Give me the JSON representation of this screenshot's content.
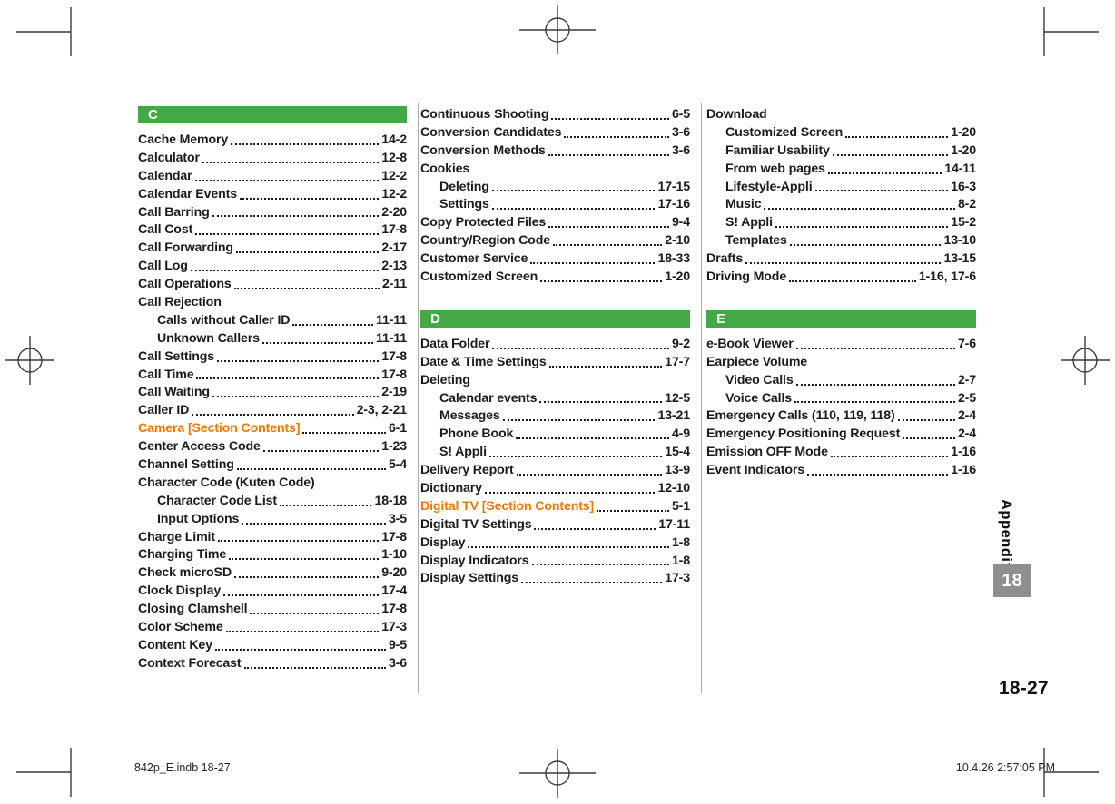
{
  "page": {
    "page_number": "18-27",
    "chapter_tab": "18",
    "sidebar_label": "Appendix",
    "footer_left": "842p_E.indb   18-27",
    "footer_right": "10.4.26   2:57:05 PM"
  },
  "colors": {
    "section_bar_green": "#44a944",
    "accent_orange": "#ee7800",
    "text": "#1b1b1b",
    "chapter_tab_gray": "#8f8f8f"
  },
  "index": {
    "columns": [
      {
        "blocks": [
          {
            "type": "header",
            "letter": "C"
          },
          {
            "type": "entry",
            "label": "Cache Memory",
            "page": "14-2"
          },
          {
            "type": "entry",
            "label": "Calculator",
            "page": "12-8"
          },
          {
            "type": "entry",
            "label": "Calendar",
            "page": "12-2"
          },
          {
            "type": "entry",
            "label": "Calendar Events",
            "page": "12-2"
          },
          {
            "type": "entry",
            "label": "Call Barring",
            "page": "2-20"
          },
          {
            "type": "entry",
            "label": "Call Cost",
            "page": "17-8"
          },
          {
            "type": "entry",
            "label": "Call Forwarding",
            "page": "2-17"
          },
          {
            "type": "entry",
            "label": "Call Log",
            "page": "2-13"
          },
          {
            "type": "entry",
            "label": "Call Operations",
            "page": "2-11"
          },
          {
            "type": "entry",
            "label": "Call Rejection",
            "page": ""
          },
          {
            "type": "entry",
            "label": "Calls without Caller ID",
            "page": "11-11",
            "indent": true
          },
          {
            "type": "entry",
            "label": "Unknown Callers",
            "page": "11-11",
            "indent": true
          },
          {
            "type": "entry",
            "label": "Call Settings",
            "page": "17-8"
          },
          {
            "type": "entry",
            "label": "Call Time",
            "page": "17-8"
          },
          {
            "type": "entry",
            "label": "Call Waiting",
            "page": "2-19"
          },
          {
            "type": "entry",
            "label": "Caller ID",
            "page": "2-3, 2-21"
          },
          {
            "type": "entry",
            "label": "Camera [Section Contents]",
            "page": "6-1",
            "accent": true
          },
          {
            "type": "entry",
            "label": "Center Access Code",
            "page": "1-23"
          },
          {
            "type": "entry",
            "label": "Channel Setting",
            "page": "5-4"
          },
          {
            "type": "entry",
            "label": "Character Code (Kuten Code)",
            "page": ""
          },
          {
            "type": "entry",
            "label": "Character Code List",
            "page": "18-18",
            "indent": true
          },
          {
            "type": "entry",
            "label": "Input Options",
            "page": "3-5",
            "indent": true
          },
          {
            "type": "entry",
            "label": "Charge Limit",
            "page": "17-8"
          },
          {
            "type": "entry",
            "label": "Charging Time",
            "page": "1-10"
          },
          {
            "type": "entry",
            "label": "Check microSD",
            "page": "9-20"
          },
          {
            "type": "entry",
            "label": "Clock Display",
            "page": "17-4"
          },
          {
            "type": "entry",
            "label": "Closing Clamshell",
            "page": "17-8"
          },
          {
            "type": "entry",
            "label": "Color Scheme",
            "page": "17-3"
          },
          {
            "type": "entry",
            "label": "Content Key",
            "page": "9-5"
          },
          {
            "type": "entry",
            "label": "Context Forecast",
            "page": "3-6"
          }
        ]
      },
      {
        "blocks": [
          {
            "type": "entry",
            "label": "Continuous Shooting",
            "page": "6-5"
          },
          {
            "type": "entry",
            "label": "Conversion Candidates",
            "page": "3-6"
          },
          {
            "type": "entry",
            "label": "Conversion Methods",
            "page": "3-6"
          },
          {
            "type": "entry",
            "label": "Cookies",
            "page": ""
          },
          {
            "type": "entry",
            "label": "Deleting",
            "page": "17-15",
            "indent": true
          },
          {
            "type": "entry",
            "label": "Settings",
            "page": "17-16",
            "indent": true
          },
          {
            "type": "entry",
            "label": "Copy Protected Files",
            "page": "9-4"
          },
          {
            "type": "entry",
            "label": "Country/Region Code",
            "page": "2-10"
          },
          {
            "type": "entry",
            "label": "Customer Service",
            "page": "18-33"
          },
          {
            "type": "entry",
            "label": "Customized Screen",
            "page": "1-20"
          },
          {
            "type": "header",
            "letter": "D",
            "gap_above": true
          },
          {
            "type": "entry",
            "label": "Data Folder",
            "page": "9-2"
          },
          {
            "type": "entry",
            "label": "Date & Time Settings",
            "page": "17-7"
          },
          {
            "type": "entry",
            "label": "Deleting",
            "page": ""
          },
          {
            "type": "entry",
            "label": "Calendar events",
            "page": "12-5",
            "indent": true
          },
          {
            "type": "entry",
            "label": "Messages",
            "page": "13-21",
            "indent": true
          },
          {
            "type": "entry",
            "label": "Phone Book",
            "page": "4-9",
            "indent": true
          },
          {
            "type": "entry",
            "label": "S! Appli",
            "page": "15-4",
            "indent": true
          },
          {
            "type": "entry",
            "label": "Delivery Report",
            "page": "13-9"
          },
          {
            "type": "entry",
            "label": "Dictionary",
            "page": "12-10"
          },
          {
            "type": "entry",
            "label": "Digital TV [Section Contents]",
            "page": "5-1",
            "accent": true
          },
          {
            "type": "entry",
            "label": "Digital TV Settings",
            "page": "17-11"
          },
          {
            "type": "entry",
            "label": "Display",
            "page": "1-8"
          },
          {
            "type": "entry",
            "label": "Display Indicators",
            "page": "1-8"
          },
          {
            "type": "entry",
            "label": "Display Settings",
            "page": "17-3"
          }
        ]
      },
      {
        "blocks": [
          {
            "type": "entry",
            "label": "Download",
            "page": ""
          },
          {
            "type": "entry",
            "label": "Customized Screen",
            "page": "1-20",
            "indent": true
          },
          {
            "type": "entry",
            "label": "Familiar Usability",
            "page": "1-20",
            "indent": true
          },
          {
            "type": "entry",
            "label": "From web pages",
            "page": "14-11",
            "indent": true
          },
          {
            "type": "entry",
            "label": "Lifestyle-Appli",
            "page": "16-3",
            "indent": true
          },
          {
            "type": "entry",
            "label": "Music",
            "page": "8-2",
            "indent": true
          },
          {
            "type": "entry",
            "label": "S! Appli",
            "page": "15-2",
            "indent": true
          },
          {
            "type": "entry",
            "label": "Templates",
            "page": "13-10",
            "indent": true
          },
          {
            "type": "entry",
            "label": "Drafts",
            "page": "13-15"
          },
          {
            "type": "entry",
            "label": "Driving Mode",
            "page": "1-16, 17-6"
          },
          {
            "type": "header",
            "letter": "E",
            "gap_above": true
          },
          {
            "type": "entry",
            "label": "e-Book Viewer",
            "page": "7-6"
          },
          {
            "type": "entry",
            "label": "Earpiece Volume",
            "page": ""
          },
          {
            "type": "entry",
            "label": "Video Calls",
            "page": "2-7",
            "indent": true
          },
          {
            "type": "entry",
            "label": "Voice Calls",
            "page": "2-5",
            "indent": true
          },
          {
            "type": "entry",
            "label": "Emergency Calls (110, 119, 118)",
            "page": "2-4"
          },
          {
            "type": "entry",
            "label": "Emergency Positioning Request",
            "page": "2-4"
          },
          {
            "type": "entry",
            "label": "Emission OFF Mode",
            "page": "1-16"
          },
          {
            "type": "entry",
            "label": "Event Indicators",
            "page": "1-16"
          }
        ]
      }
    ]
  }
}
